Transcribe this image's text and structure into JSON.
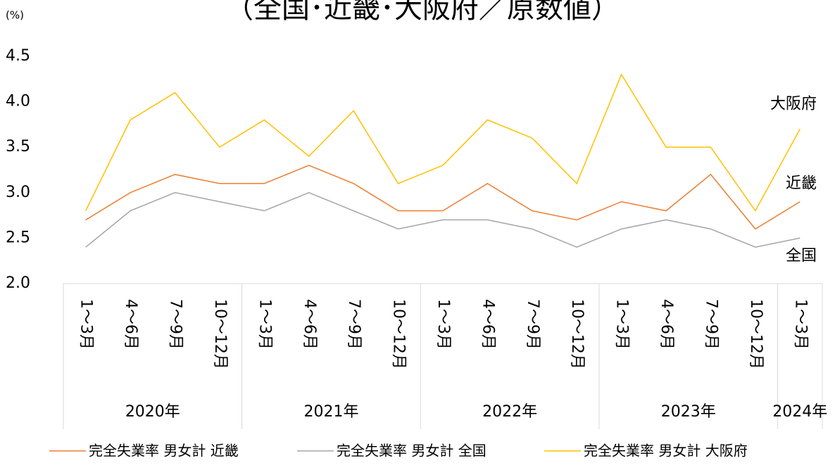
{
  "chart_data": {
    "type": "line",
    "title": "（全国･近畿･大阪府／原数値）",
    "y_unit": "(%)",
    "categories": [
      "1～3月",
      "4～6月",
      "7～9月",
      "10～12月",
      "1～3月",
      "4～6月",
      "7～9月",
      "10～12月",
      "1～3月",
      "4～6月",
      "7～9月",
      "10～12月",
      "1～3月",
      "4～6月",
      "7～9月",
      "10～12月",
      "1～3月"
    ],
    "years": [
      "2020年",
      "2021年",
      "2022年",
      "2023年",
      "2024年"
    ],
    "series": [
      {
        "name": "完全失業率 男女計 近畿",
        "color": "#ed7d31",
        "annotation": "近畿",
        "values": [
          2.7,
          3.0,
          3.2,
          3.1,
          3.1,
          3.3,
          3.1,
          2.8,
          2.8,
          3.1,
          2.8,
          2.7,
          2.9,
          2.8,
          3.2,
          2.6,
          2.9
        ]
      },
      {
        "name": "完全失業率 男女計 全国",
        "color": "#a5a5a5",
        "annotation": "全国",
        "values": [
          2.4,
          2.8,
          3.0,
          2.9,
          2.8,
          3.0,
          2.8,
          2.6,
          2.7,
          2.7,
          2.6,
          2.4,
          2.6,
          2.7,
          2.6,
          2.4,
          2.5
        ]
      },
      {
        "name": "完全失業率 男女計 大阪府",
        "color": "#ffc000",
        "annotation": "大阪府",
        "values": [
          2.8,
          3.8,
          4.1,
          3.5,
          3.8,
          3.4,
          3.9,
          3.1,
          3.3,
          3.8,
          3.6,
          3.1,
          4.3,
          3.5,
          3.5,
          2.8,
          3.7
        ]
      }
    ],
    "ylim": [
      2.0,
      4.5
    ],
    "yticks": [
      {
        "value": 2,
        "label": "2.0"
      },
      2.5,
      {
        "value": 3,
        "label": "3.0"
      },
      3.5,
      {
        "value": 4,
        "label": "4.0"
      },
      4.5
    ],
    "grid": false,
    "legend": "bottom"
  }
}
